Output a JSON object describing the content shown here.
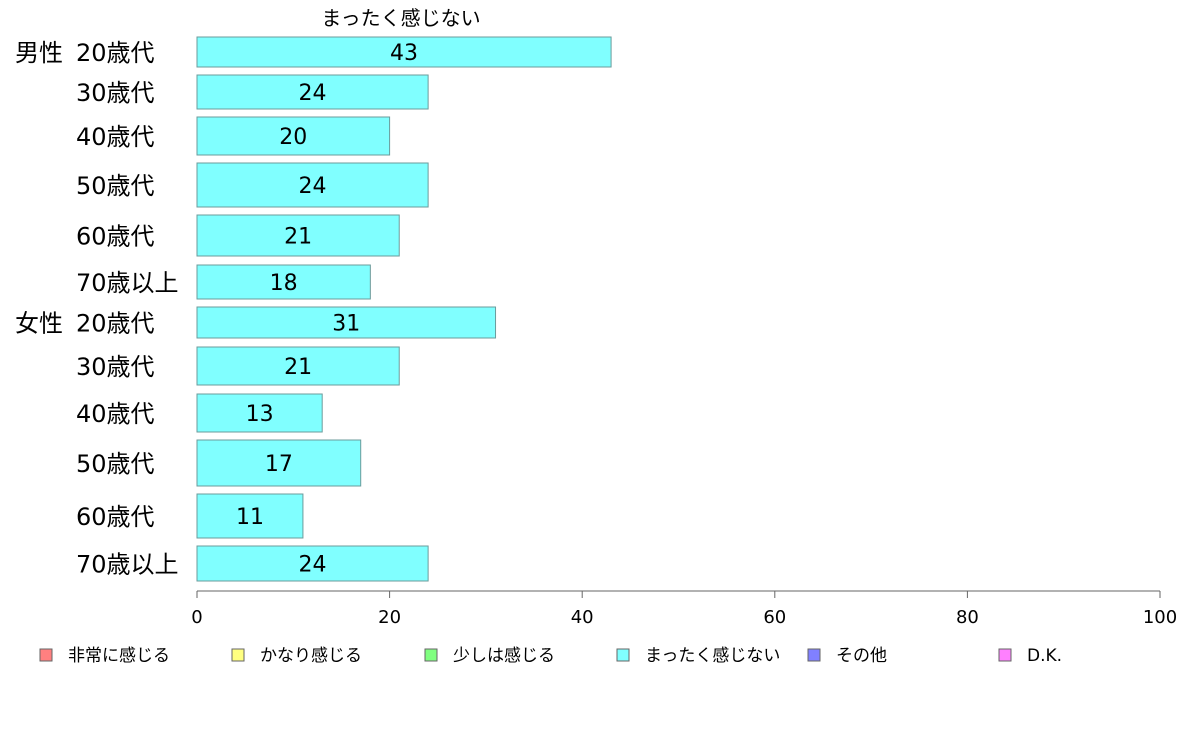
{
  "chart_data": {
    "type": "bar",
    "orientation": "horizontal",
    "title": "まったく感じない",
    "groups": [
      {
        "label": "男性",
        "categories": [
          "20歳代",
          "30歳代",
          "40歳代",
          "50歳代",
          "60歳代",
          "70歳以上"
        ]
      },
      {
        "label": "女性",
        "categories": [
          "20歳代",
          "30歳代",
          "40歳代",
          "50歳代",
          "60歳代",
          "70歳以上"
        ]
      }
    ],
    "series": [
      {
        "name": "まったく感じない",
        "values": [
          43,
          24,
          20,
          24,
          21,
          18,
          31,
          21,
          13,
          17,
          11,
          24
        ]
      }
    ],
    "xlim": [
      0,
      100
    ],
    "xticks": [
      0,
      20,
      40,
      60,
      80,
      100
    ],
    "grid": false,
    "legend_position": "bottom",
    "legend": [
      {
        "label": "非常に感じる",
        "color": "#ff8080"
      },
      {
        "label": "かなり感じる",
        "color": "#ffff80"
      },
      {
        "label": "少しは感じる",
        "color": "#80ff80"
      },
      {
        "label": "まったく感じない",
        "color": "#80ffff"
      },
      {
        "label": "その他",
        "color": "#8080ff"
      },
      {
        "label": "D.K.",
        "color": "#ff80ff"
      }
    ],
    "bar_color": "#80ffff"
  }
}
